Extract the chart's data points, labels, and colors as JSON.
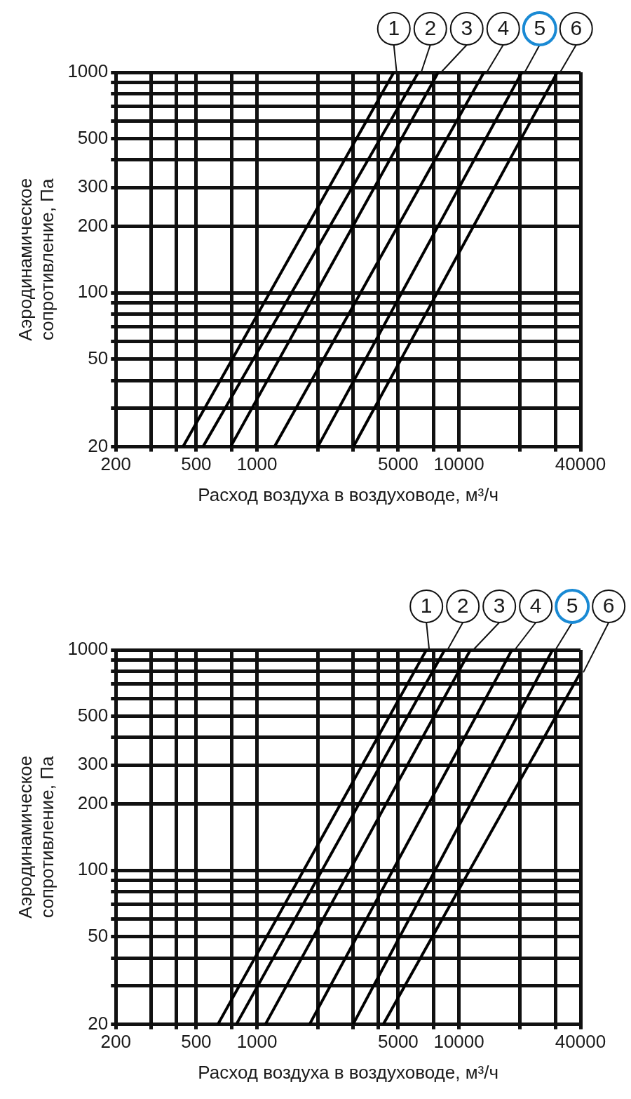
{
  "chart_data": [
    {
      "type": "line",
      "xlabel": "Расход воздуха в воздуховоде, м³/ч",
      "ylabel": "Аэродинамическое сопротивление, Па",
      "log": "xy",
      "grid": true,
      "marker": "none",
      "line_style": "solid",
      "xlim": [
        200,
        40000
      ],
      "ylim": [
        20,
        1000
      ],
      "xticks": [
        200,
        {
          "value": 300,
          "label": null
        },
        {
          "value": 400,
          "label": null
        },
        500,
        {
          "value": 750,
          "label": null
        },
        1000,
        {
          "value": 2000,
          "label": null
        },
        {
          "value": 3000,
          "label": null
        },
        {
          "value": 4000,
          "label": null
        },
        5000,
        {
          "value": 7500,
          "label": null
        },
        10000,
        {
          "value": 20000,
          "label": null
        },
        {
          "value": 30000,
          "label": null
        },
        40000
      ],
      "yticks": [
        20,
        {
          "value": 30,
          "label": null
        },
        {
          "value": 40,
          "label": null
        },
        50,
        {
          "value": 60,
          "label": null
        },
        {
          "value": 70,
          "label": null
        },
        {
          "value": 80,
          "label": null
        },
        {
          "value": 90,
          "label": null
        },
        100,
        200,
        300,
        {
          "value": 400,
          "label": null
        },
        500,
        {
          "value": 600,
          "label": null
        },
        {
          "value": 700,
          "label": null
        },
        {
          "value": 800,
          "label": null
        },
        {
          "value": 900,
          "label": null
        },
        1000
      ],
      "series": [
        {
          "name": "1",
          "color": "#000000",
          "x": [
            430,
            4760
          ],
          "values": [
            20,
            1000
          ]
        },
        {
          "name": "2",
          "color": "#000000",
          "x": [
            540,
            6300
          ],
          "values": [
            20,
            1000
          ]
        },
        {
          "name": "3",
          "color": "#000000",
          "x": [
            740,
            7900
          ],
          "values": [
            20,
            1000
          ]
        },
        {
          "name": "4",
          "color": "#000000",
          "x": [
            1220,
            13300
          ],
          "values": [
            20,
            1000
          ]
        },
        {
          "name": "5",
          "color": "#000000",
          "x": [
            2000,
            20500
          ],
          "values": [
            20,
            1000
          ]
        },
        {
          "name": "6",
          "color": "#000000",
          "x": [
            3000,
            30700
          ],
          "values": [
            20,
            1000
          ]
        }
      ]
    },
    {
      "type": "line",
      "xlabel": "Расход воздуха в воздуховоде, м³/ч",
      "ylabel": "Аэродинамическое сопротивление, Па",
      "log": "xy",
      "grid": true,
      "marker": "none",
      "line_style": "solid",
      "xlim": [
        200,
        40000
      ],
      "ylim": [
        20,
        1000
      ],
      "xticks": [
        200,
        {
          "value": 300,
          "label": null
        },
        {
          "value": 400,
          "label": null
        },
        500,
        {
          "value": 750,
          "label": null
        },
        1000,
        {
          "value": 2000,
          "label": null
        },
        {
          "value": 3000,
          "label": null
        },
        {
          "value": 4000,
          "label": null
        },
        5000,
        {
          "value": 7500,
          "label": null
        },
        10000,
        {
          "value": 20000,
          "label": null
        },
        {
          "value": 30000,
          "label": null
        },
        40000
      ],
      "yticks": [
        20,
        {
          "value": 30,
          "label": null
        },
        {
          "value": 40,
          "label": null
        },
        50,
        {
          "value": 60,
          "label": null
        },
        {
          "value": 70,
          "label": null
        },
        {
          "value": 80,
          "label": null
        },
        {
          "value": 90,
          "label": null
        },
        100,
        200,
        300,
        {
          "value": 400,
          "label": null
        },
        500,
        {
          "value": 600,
          "label": null
        },
        {
          "value": 700,
          "label": null
        },
        {
          "value": 800,
          "label": null
        },
        {
          "value": 900,
          "label": null
        },
        1000
      ],
      "series": [
        {
          "name": "1",
          "color": "#000000",
          "x": [
            640,
            6900
          ],
          "values": [
            20,
            1000
          ]
        },
        {
          "name": "2",
          "color": "#000000",
          "x": [
            790,
            8500
          ],
          "values": [
            20,
            1000
          ]
        },
        {
          "name": "3",
          "color": "#000000",
          "x": [
            1100,
            11400
          ],
          "values": [
            20,
            1000
          ]
        },
        {
          "name": "4",
          "color": "#000000",
          "x": [
            1820,
            18300
          ],
          "values": [
            20,
            1000
          ]
        },
        {
          "name": "5",
          "color": "#000000",
          "x": [
            2990,
            29100
          ],
          "values": [
            20,
            1000
          ]
        },
        {
          "name": "6",
          "color": "#000000",
          "x": [
            4220,
            40000
          ],
          "values": [
            20,
            790
          ]
        }
      ]
    }
  ]
}
